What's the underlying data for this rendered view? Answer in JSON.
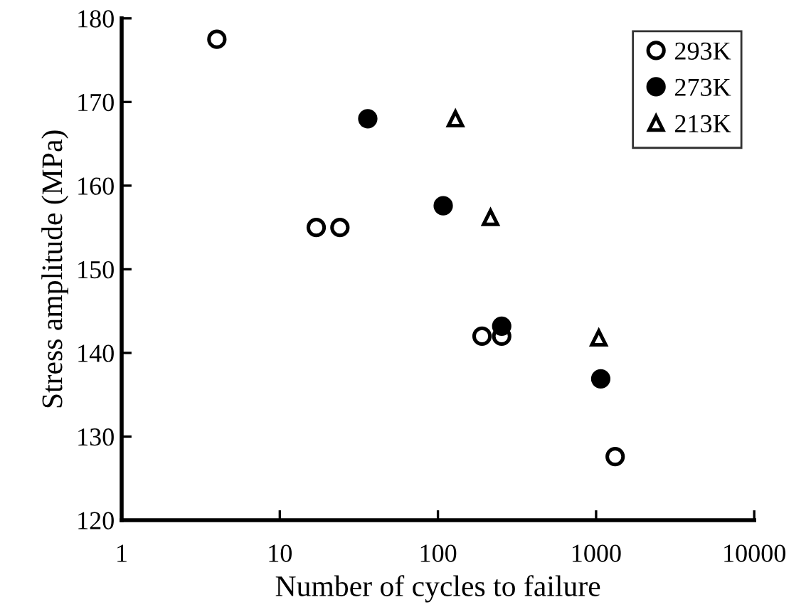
{
  "chart_data": {
    "type": "scatter",
    "xlabel": "Number of cycles to failure",
    "ylabel": "Stress amplitude (MPa)",
    "log": "x",
    "xlim": [
      1,
      10000
    ],
    "xticks": [
      1,
      10,
      100,
      1000,
      10000
    ],
    "ylim": [
      120,
      180
    ],
    "yticks": [
      120,
      130,
      140,
      150,
      160,
      170,
      180
    ],
    "grid": false,
    "legend": "top right",
    "series": [
      {
        "name": "293K",
        "color": "#ffffff",
        "marker": "circle",
        "x": [
          4,
          17,
          24,
          190,
          253,
          1320
        ],
        "values": [
          177.5,
          155,
          155,
          142,
          142,
          127.6
        ]
      },
      {
        "name": "273K",
        "color": "#000000",
        "marker": "circle",
        "x": [
          36,
          108,
          253,
          1070
        ],
        "values": [
          168,
          157.6,
          143.2,
          136.9
        ]
      },
      {
        "name": "213K",
        "color": "#ffffff",
        "marker": "triangle",
        "x": [
          129,
          215,
          1040
        ],
        "values": [
          168,
          156.2,
          141.8
        ]
      }
    ]
  }
}
